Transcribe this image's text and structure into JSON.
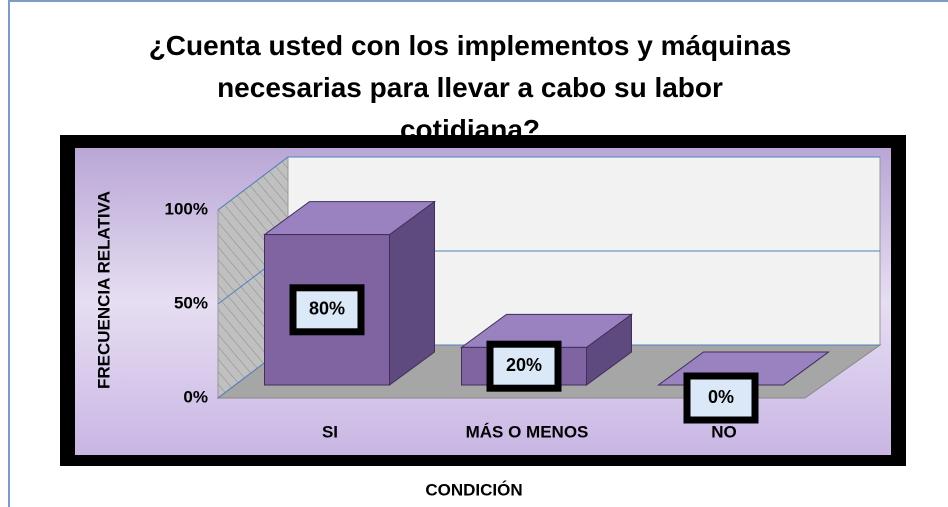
{
  "chart_data": {
    "type": "bar3d",
    "title": "¿Cuenta usted con los implementos y máquinas necesarias para llevar a cabo su labor cotidiana?",
    "x_label": "CONDICIÓN",
    "y_label": "FRECUENCIA RELATIVA",
    "categories": [
      "SI",
      "MÁS O MENOS",
      "NO"
    ],
    "values": [
      80,
      20,
      0
    ],
    "value_labels": [
      "80%",
      "20%",
      "0%"
    ],
    "color": "#8064a2",
    "ylim": [
      0,
      100
    ],
    "yticks": [
      {
        "value": 0,
        "label": "0%"
      },
      {
        "value": 50,
        "label": "50%"
      },
      {
        "value": 100,
        "label": "100%"
      }
    ],
    "grid": true
  }
}
